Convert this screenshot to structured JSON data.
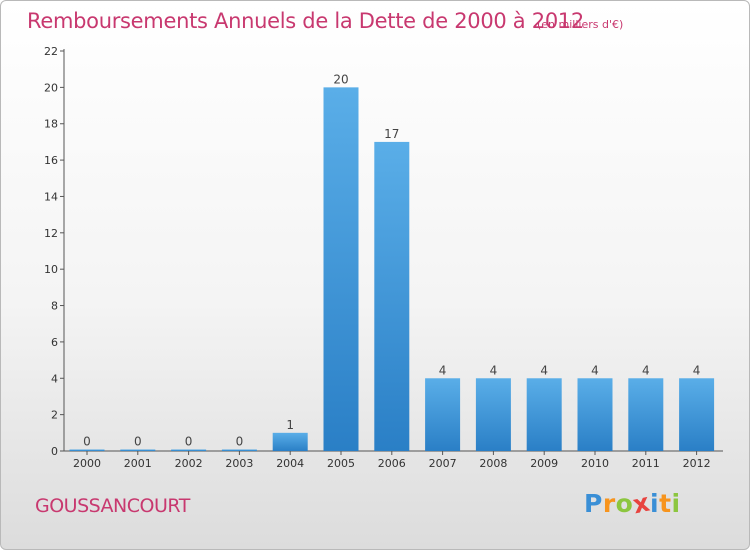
{
  "title": "Remboursements Annuels de la Dette de 2000 à 2012",
  "unit": "(en milliers d'€)",
  "commune": "GOUSSANCOURT",
  "logo": {
    "letters": [
      "P",
      "r",
      "o",
      "x",
      "i",
      "t",
      "i"
    ],
    "colors": [
      "#3a8fd6",
      "#f7941d",
      "#8cc63f",
      "#e8433f",
      "#3a8fd6",
      "#f7941d",
      "#8cc63f"
    ]
  },
  "colors": {
    "title": "#c8386f",
    "bar_top": "#5aaee8",
    "bar_bottom": "#2a7fc6"
  },
  "chart_data": {
    "type": "bar",
    "categories": [
      "2000",
      "2001",
      "2002",
      "2003",
      "2004",
      "2005",
      "2006",
      "2007",
      "2008",
      "2009",
      "2010",
      "2011",
      "2012"
    ],
    "values": [
      0,
      0,
      0,
      0,
      1,
      20,
      17,
      4,
      4,
      4,
      4,
      4,
      4
    ],
    "data_labels": [
      "0",
      "0",
      "0",
      "0",
      "1",
      "20",
      "17",
      "4",
      "4",
      "4",
      "4",
      "4",
      "4"
    ],
    "yticks": [
      0,
      2,
      4,
      6,
      8,
      10,
      12,
      14,
      16,
      18,
      20,
      22
    ],
    "ylim": [
      0,
      22
    ],
    "grid": false,
    "legend": "none"
  }
}
